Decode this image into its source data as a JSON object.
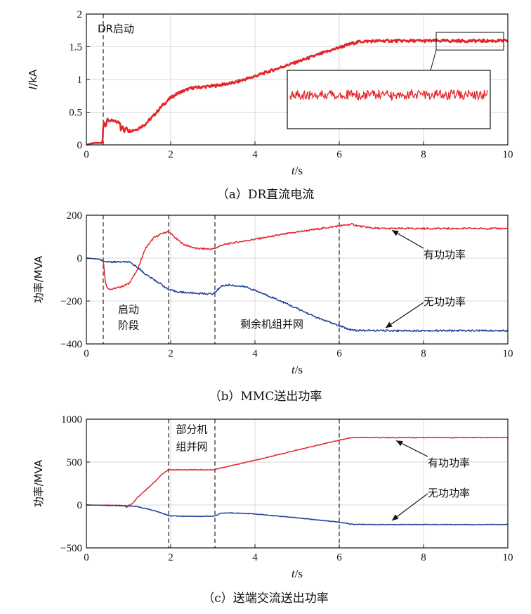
{
  "chart_data": [
    {
      "id": "a",
      "type": "line",
      "caption": "（a）DR直流电流",
      "ylabel_html": [
        "I",
        "/kA"
      ],
      "xlabel_parts": [
        "t",
        "/s"
      ],
      "xlim": [
        0,
        10
      ],
      "ylim": [
        0,
        2
      ],
      "xticks": [
        "0",
        "2",
        "4",
        "6",
        "8",
        "10"
      ],
      "yticks": [
        "0",
        "0.5",
        "1",
        "1.5",
        "2"
      ],
      "vlines": [
        0.4
      ],
      "annotations": [
        {
          "text": "DR启动",
          "x": 0.7,
          "y": 1.72
        }
      ],
      "series": [
        {
          "name": "DR直流电流",
          "color": "#e3262b",
          "x": [
            0,
            0.1,
            0.2,
            0.3,
            0.38,
            0.4,
            0.42,
            0.45,
            0.5,
            0.8,
            0.82,
            0.85,
            0.9,
            0.95,
            1.0,
            1.2,
            1.4,
            1.6,
            1.8,
            2.0,
            2.2,
            2.5,
            3.0,
            3.5,
            4.0,
            4.5,
            5.0,
            5.5,
            6.0,
            6.3,
            6.5,
            7.0,
            8.0,
            9.0,
            10.0
          ],
          "y": [
            0,
            0.02,
            0.03,
            0.03,
            0.03,
            0.28,
            0.36,
            0.28,
            0.38,
            0.34,
            0.22,
            0.3,
            0.2,
            0.28,
            0.21,
            0.24,
            0.32,
            0.45,
            0.6,
            0.72,
            0.8,
            0.87,
            0.9,
            0.95,
            1.05,
            1.16,
            1.27,
            1.38,
            1.49,
            1.55,
            1.58,
            1.59,
            1.59,
            1.59,
            1.59
          ]
        }
      ],
      "inset": {
        "zoom_window_x": [
          8.3,
          10.0
        ],
        "zoom_window_y": [
          1.45,
          1.72
        ],
        "description": "zoomed ripple of steady-state current"
      }
    },
    {
      "id": "b",
      "type": "line",
      "caption": "（b）MMC送出功率",
      "ylabel": "功率/MVA",
      "xlabel_parts": [
        "t",
        "/s"
      ],
      "xlim": [
        0,
        10
      ],
      "ylim": [
        -400,
        200
      ],
      "xticks": [
        "0",
        "2",
        "4",
        "6",
        "8",
        "10"
      ],
      "yticks": [
        "200",
        "0",
        "−200",
        "−400"
      ],
      "ytick_values": [
        200,
        0,
        -200,
        -400
      ],
      "vlines": [
        0.4,
        1.95,
        3.05,
        6.0
      ],
      "annotations": [
        {
          "text": "启动",
          "x": 1.0,
          "y": -255
        },
        {
          "text": "阶段",
          "x": 1.0,
          "y": -330
        },
        {
          "text": "剩余机组并网",
          "x": 4.4,
          "y": -325
        },
        {
          "text": "有功功率",
          "x": 8.5,
          "y": 0,
          "arrow_to": [
            7.25,
            130
          ]
        },
        {
          "text": "无功功率",
          "x": 8.5,
          "y": -220,
          "arrow_to": [
            7.1,
            -325
          ]
        }
      ],
      "series": [
        {
          "name": "有功功率",
          "color": "#e3262b",
          "x": [
            0,
            0.3,
            0.4,
            0.45,
            0.5,
            0.6,
            0.8,
            1.0,
            1.2,
            1.4,
            1.6,
            1.8,
            1.95,
            2.1,
            2.3,
            2.6,
            3.0,
            3.05,
            3.2,
            3.5,
            4.0,
            5.0,
            6.0,
            6.3,
            6.5,
            6.8,
            7.0,
            8.0,
            10.0
          ],
          "y": [
            0,
            -5,
            -10,
            -110,
            -140,
            -145,
            -135,
            -120,
            -60,
            45,
            95,
            115,
            125,
            95,
            65,
            45,
            42,
            45,
            60,
            72,
            88,
            122,
            150,
            158,
            148,
            140,
            138,
            138,
            138
          ]
        },
        {
          "name": "无功功率",
          "color": "#1f3f99",
          "x": [
            0,
            0.3,
            0.4,
            0.5,
            1.0,
            1.2,
            1.4,
            1.6,
            1.8,
            1.95,
            2.2,
            2.6,
            3.0,
            3.05,
            3.2,
            3.4,
            3.8,
            4.5,
            5.0,
            5.5,
            6.0,
            6.2,
            6.4,
            7.0,
            8.0,
            10.0
          ],
          "y": [
            0,
            -5,
            -15,
            -18,
            -18,
            -40,
            -75,
            -100,
            -125,
            -148,
            -158,
            -164,
            -167,
            -160,
            -130,
            -125,
            -135,
            -190,
            -235,
            -280,
            -315,
            -330,
            -337,
            -338,
            -338,
            -338
          ]
        }
      ]
    },
    {
      "id": "c",
      "type": "line",
      "caption": "（c）送端交流送出功率",
      "ylabel": "功率/MVA",
      "xlabel_parts": [
        "t",
        "/s"
      ],
      "xlim": [
        0,
        10
      ],
      "ylim": [
        -500,
        1000
      ],
      "xticks": [
        "0",
        "2",
        "4",
        "6",
        "8",
        "10"
      ],
      "yticks": [
        "1000",
        "500",
        "0",
        "−500"
      ],
      "ytick_values": [
        1000,
        500,
        0,
        -500
      ],
      "vlines": [
        1.95,
        3.05,
        6.0
      ],
      "annotations": [
        {
          "text": "部分机",
          "x": 2.5,
          "y": 840
        },
        {
          "text": "组并网",
          "x": 2.5,
          "y": 640
        },
        {
          "text": "有功功率",
          "x": 8.6,
          "y": 450,
          "arrow_to": [
            7.35,
            750
          ]
        },
        {
          "text": "无功功率",
          "x": 8.6,
          "y": 100,
          "arrow_to": [
            7.25,
            -180
          ]
        }
      ],
      "series": [
        {
          "name": "有功功率",
          "color": "#e3262b",
          "x": [
            0,
            0.8,
            0.9,
            0.95,
            1.0,
            1.1,
            1.2,
            1.4,
            1.6,
            1.8,
            1.95,
            2.1,
            2.5,
            3.0,
            3.05,
            4.0,
            5.0,
            6.0,
            6.3,
            7.0,
            8.0,
            10.0
          ],
          "y": [
            0,
            -5,
            -10,
            -30,
            -5,
            20,
            80,
            170,
            260,
            360,
            410,
            410,
            410,
            410,
            415,
            520,
            640,
            755,
            785,
            785,
            785,
            785
          ]
        },
        {
          "name": "无功功率",
          "color": "#1f3f99",
          "x": [
            0,
            0.8,
            1.0,
            1.2,
            1.4,
            1.6,
            1.8,
            1.95,
            2.2,
            2.6,
            3.0,
            3.05,
            3.2,
            3.5,
            4.0,
            5.0,
            6.0,
            6.3,
            7.0,
            8.0,
            10.0
          ],
          "y": [
            0,
            -8,
            -10,
            -20,
            -40,
            -65,
            -95,
            -125,
            -130,
            -132,
            -132,
            -125,
            -95,
            -92,
            -105,
            -150,
            -200,
            -225,
            -228,
            -228,
            -228
          ]
        }
      ]
    }
  ]
}
